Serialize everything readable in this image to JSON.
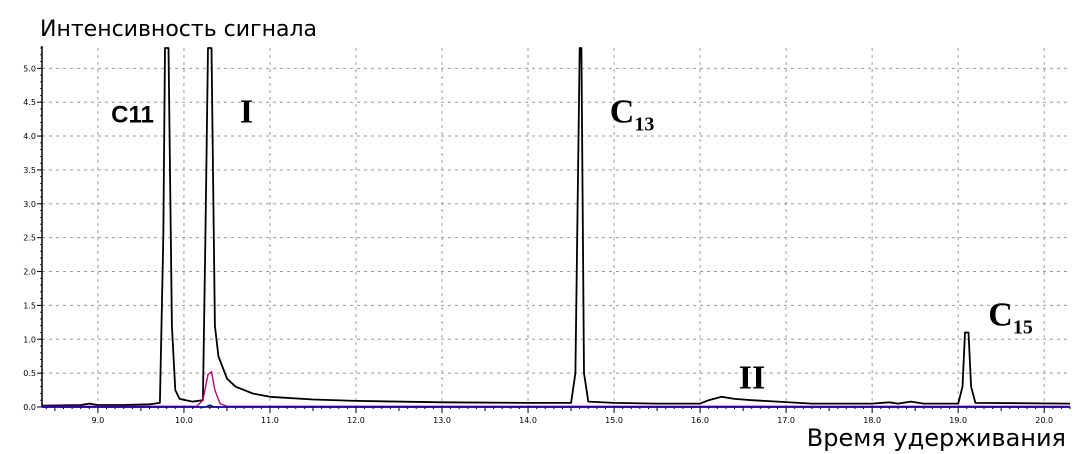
{
  "chart_data": {
    "type": "line",
    "ylabel": "Интенсивность сигнала",
    "xlabel": "Время удерживания",
    "xlim": [
      8.35,
      20.3
    ],
    "ylim": [
      0,
      5.3
    ],
    "x_ticks": [
      {
        "value": 9.0,
        "label": "9.0"
      },
      {
        "value": 10.0,
        "label": "10.0"
      },
      {
        "value": 11.0,
        "label": "11.0"
      },
      {
        "value": 12.0,
        "label": "12.0"
      },
      {
        "value": 13.0,
        "label": "13.0"
      },
      {
        "value": 14.0,
        "label": "14.0"
      },
      {
        "value": 15.0,
        "label": "15.0"
      },
      {
        "value": 16.0,
        "label": "16.0"
      },
      {
        "value": 17.0,
        "label": "17.0"
      },
      {
        "value": 18.0,
        "label": "18.0"
      },
      {
        "value": 19.0,
        "label": "19.0"
      },
      {
        "value": 20.0,
        "label": "20.0"
      }
    ],
    "y_ticks": [
      {
        "value": 0.0,
        "label": "0.0"
      },
      {
        "value": 0.5,
        "label": "0.5"
      },
      {
        "value": 1.0,
        "label": "1.0"
      },
      {
        "value": 1.5,
        "label": "1.5"
      },
      {
        "value": 2.0,
        "label": "2.0"
      },
      {
        "value": 2.5,
        "label": "2.5"
      },
      {
        "value": 3.0,
        "label": "3.0"
      },
      {
        "value": 3.5,
        "label": "3.5"
      },
      {
        "value": 4.0,
        "label": "4.0"
      },
      {
        "value": 4.5,
        "label": "4.5"
      },
      {
        "value": 5.0,
        "label": "5.0"
      }
    ],
    "grid": true,
    "series": [
      {
        "color": "#000000",
        "points": [
          [
            8.35,
            0.02
          ],
          [
            8.8,
            0.03
          ],
          [
            8.9,
            0.05
          ],
          [
            9.0,
            0.03
          ],
          [
            9.3,
            0.03
          ],
          [
            9.6,
            0.04
          ],
          [
            9.72,
            0.06
          ],
          [
            9.76,
            2.5
          ],
          [
            9.78,
            6.0
          ],
          [
            9.82,
            6.0
          ],
          [
            9.86,
            1.2
          ],
          [
            9.9,
            0.25
          ],
          [
            9.95,
            0.12
          ],
          [
            10.1,
            0.08
          ],
          [
            10.22,
            0.1
          ],
          [
            10.25,
            2.5
          ],
          [
            10.28,
            6.0
          ],
          [
            10.32,
            6.0
          ],
          [
            10.36,
            1.2
          ],
          [
            10.4,
            0.75
          ],
          [
            10.5,
            0.42
          ],
          [
            10.6,
            0.3
          ],
          [
            10.8,
            0.2
          ],
          [
            11.0,
            0.15
          ],
          [
            11.5,
            0.11
          ],
          [
            12.0,
            0.09
          ],
          [
            13.0,
            0.07
          ],
          [
            14.0,
            0.06
          ],
          [
            14.5,
            0.06
          ],
          [
            14.55,
            0.5
          ],
          [
            14.6,
            5.35
          ],
          [
            14.62,
            5.35
          ],
          [
            14.65,
            0.5
          ],
          [
            14.7,
            0.08
          ],
          [
            15.0,
            0.06
          ],
          [
            15.5,
            0.05
          ],
          [
            16.0,
            0.05
          ],
          [
            16.1,
            0.1
          ],
          [
            16.25,
            0.15
          ],
          [
            16.4,
            0.12
          ],
          [
            16.6,
            0.1
          ],
          [
            16.9,
            0.08
          ],
          [
            17.3,
            0.05
          ],
          [
            18.0,
            0.05
          ],
          [
            18.2,
            0.07
          ],
          [
            18.3,
            0.05
          ],
          [
            18.45,
            0.08
          ],
          [
            18.6,
            0.05
          ],
          [
            19.0,
            0.05
          ],
          [
            19.05,
            0.3
          ],
          [
            19.08,
            1.1
          ],
          [
            19.12,
            1.1
          ],
          [
            19.15,
            0.3
          ],
          [
            19.2,
            0.06
          ],
          [
            20.3,
            0.05
          ]
        ]
      },
      {
        "color": "#c0007a",
        "points": [
          [
            8.35,
            0.01
          ],
          [
            10.15,
            0.01
          ],
          [
            10.22,
            0.1
          ],
          [
            10.28,
            0.48
          ],
          [
            10.32,
            0.52
          ],
          [
            10.36,
            0.25
          ],
          [
            10.42,
            0.05
          ],
          [
            10.5,
            0.01
          ],
          [
            20.3,
            0.01
          ]
        ]
      },
      {
        "color": "#0000c0",
        "points": [
          [
            8.35,
            0.0
          ],
          [
            10.25,
            0.0
          ],
          [
            10.3,
            0.03
          ],
          [
            10.35,
            0.0
          ],
          [
            20.3,
            0.0
          ]
        ]
      }
    ],
    "annotations": [
      {
        "text": "C11",
        "x": 9.65,
        "y": 4.2,
        "style": "sans"
      },
      {
        "text": "I",
        "x": 10.65,
        "y": 4.2,
        "style": "serif"
      },
      {
        "text": "C",
        "sub": "13",
        "x": 14.95,
        "y": 4.2,
        "style": "serif"
      },
      {
        "text": "II",
        "x": 16.45,
        "y": 0.27,
        "style": "serif"
      },
      {
        "text": "C",
        "sub": "15",
        "x": 19.35,
        "y": 1.2,
        "style": "serif"
      }
    ]
  }
}
